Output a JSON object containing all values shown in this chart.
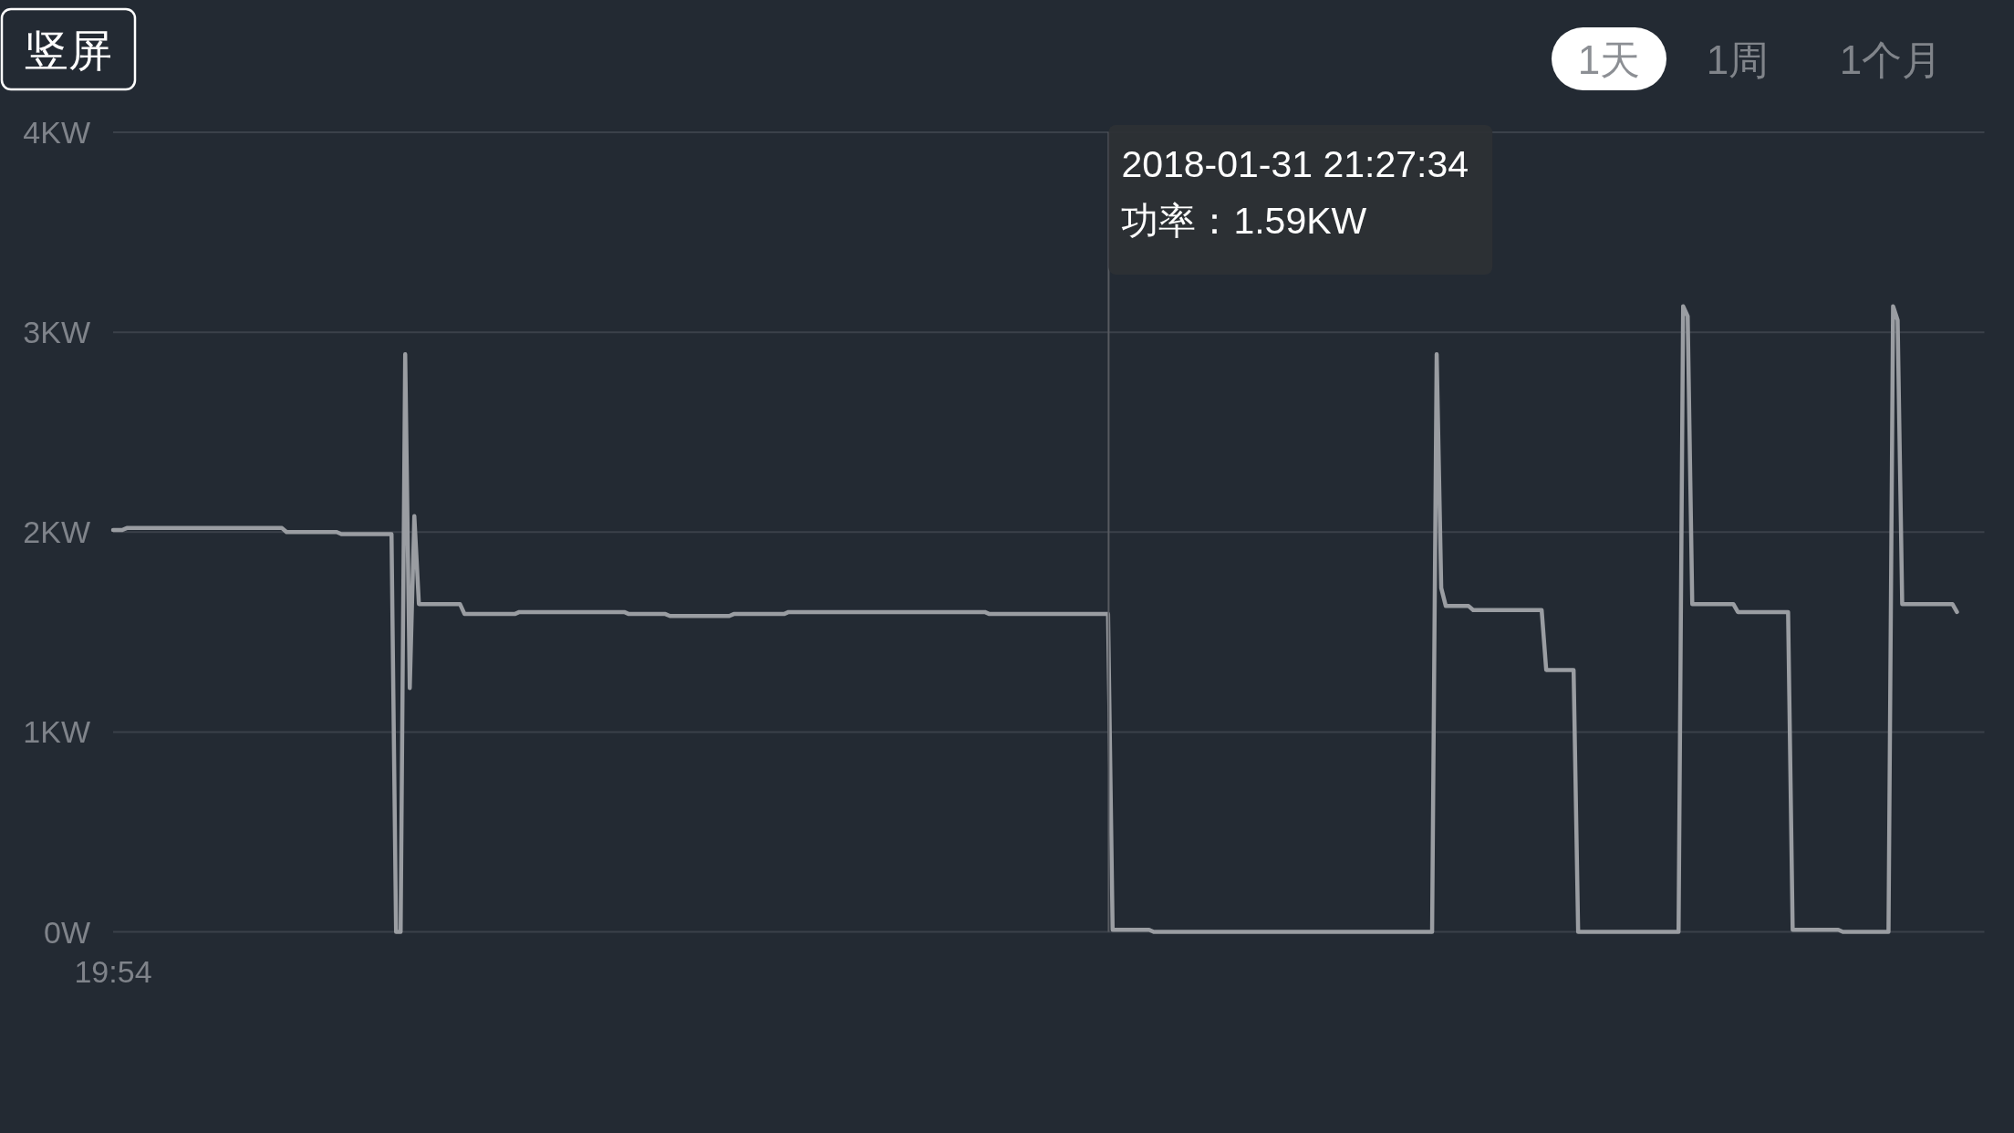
{
  "chart_data": {
    "type": "line",
    "categories": [
      "19:54",
      null,
      null,
      null,
      null,
      null,
      null,
      null,
      null,
      null,
      null,
      null,
      null,
      null,
      null,
      null,
      null,
      null,
      null,
      null,
      null,
      null,
      null,
      null,
      null,
      null,
      null,
      null,
      null,
      null,
      null,
      null,
      null,
      null,
      null,
      null,
      null,
      null,
      null,
      null,
      null,
      null,
      null,
      null,
      null,
      null,
      null,
      null,
      null,
      null,
      null,
      null,
      null,
      null,
      null,
      null,
      null,
      null,
      null,
      null,
      null,
      null,
      null,
      null,
      null,
      null,
      null,
      null,
      null,
      null,
      null,
      null,
      null,
      null,
      null,
      null,
      null,
      null,
      null,
      null,
      null,
      null,
      null,
      null,
      null,
      null,
      null,
      null,
      null,
      null,
      null,
      null,
      null,
      null,
      null,
      null,
      null,
      null,
      null,
      null,
      null,
      null,
      null,
      null,
      null,
      null,
      null,
      null,
      null,
      null,
      null,
      null,
      null,
      null,
      null,
      null,
      null,
      null,
      null,
      null,
      null,
      null,
      null,
      null,
      null,
      null,
      null,
      null,
      null,
      null,
      null,
      null,
      null,
      null,
      null,
      null,
      null,
      null,
      null,
      null,
      null,
      null,
      null,
      null,
      null,
      null,
      null,
      null,
      null,
      null,
      null,
      null,
      null,
      null,
      null,
      null,
      null,
      null,
      null,
      null,
      null,
      null,
      null,
      null,
      null,
      null,
      null,
      null,
      null,
      null,
      null,
      null,
      null,
      null,
      null,
      null,
      null,
      null,
      null,
      null,
      null,
      null,
      null,
      null,
      null,
      null,
      null,
      null,
      null,
      null,
      null,
      null,
      null,
      null,
      null,
      null,
      null,
      null,
      null,
      null,
      null,
      null,
      null,
      null,
      null,
      null,
      null,
      null,
      null,
      null,
      null,
      null,
      null,
      null,
      null,
      null,
      null,
      null,
      null,
      null,
      null,
      null,
      null,
      null,
      null,
      null,
      null,
      null,
      null,
      null,
      null,
      null,
      null,
      null,
      null,
      null,
      null,
      null,
      null,
      null,
      null,
      null,
      null,
      null,
      null,
      null,
      null,
      null,
      null,
      null,
      null,
      null,
      null,
      null,
      null,
      null,
      null,
      null,
      null,
      null,
      null,
      null,
      null,
      null,
      null,
      null,
      null,
      null,
      null,
      null,
      null,
      null,
      null,
      null,
      null,
      null,
      null,
      null,
      null,
      null,
      null,
      null,
      null,
      null,
      null,
      null,
      null,
      null,
      null,
      null,
      null,
      null,
      null,
      null,
      null,
      null,
      null,
      null,
      null,
      null,
      null,
      null,
      null,
      null,
      null,
      null,
      null,
      null,
      null,
      null,
      null,
      null,
      null,
      null,
      null,
      null,
      null,
      null,
      null,
      null,
      null,
      null,
      null,
      null,
      null,
      null,
      null,
      null,
      null,
      null,
      null,
      null,
      null,
      null,
      null,
      null,
      null,
      null,
      null,
      null,
      null,
      null,
      null,
      null,
      null,
      null,
      null,
      null,
      null,
      null,
      null,
      null,
      null,
      null,
      null,
      null,
      null,
      null,
      null,
      null,
      null,
      null,
      null,
      null,
      null,
      null,
      null,
      null,
      null,
      null,
      null,
      null,
      null,
      null,
      null,
      null,
      null,
      null,
      null,
      null,
      null,
      null,
      null,
      null,
      null,
      null,
      null,
      null,
      null,
      null,
      null,
      null,
      null,
      null,
      null,
      null,
      null,
      null,
      null,
      null,
      null,
      null,
      null,
      null,
      null,
      null,
      null,
      null,
      null,
      null,
      null
    ],
    "values": [
      2.01,
      2.01,
      2.01,
      2.02,
      2.02,
      2.02,
      2.02,
      2.02,
      2.02,
      2.02,
      2.02,
      2.02,
      2.02,
      2.02,
      2.02,
      2.02,
      2.02,
      2.02,
      2.02,
      2.02,
      2.02,
      2.02,
      2.02,
      2.02,
      2.02,
      2.02,
      2.02,
      2.02,
      2.02,
      2.02,
      2.02,
      2.02,
      2.02,
      2.02,
      2.02,
      2.02,
      2.02,
      2.02,
      2.0,
      2.0,
      2.0,
      2.0,
      2.0,
      2.0,
      2.0,
      2.0,
      2.0,
      2.0,
      2.0,
      2.0,
      1.99,
      1.99,
      1.99,
      1.99,
      1.99,
      1.99,
      1.99,
      1.99,
      1.99,
      1.99,
      1.99,
      1.99,
      0,
      0,
      2.89,
      1.22,
      2.08,
      1.64,
      1.64,
      1.64,
      1.64,
      1.64,
      1.64,
      1.64,
      1.64,
      1.64,
      1.64,
      1.59,
      1.59,
      1.59,
      1.59,
      1.59,
      1.59,
      1.59,
      1.59,
      1.59,
      1.59,
      1.59,
      1.59,
      1.6,
      1.6,
      1.6,
      1.6,
      1.6,
      1.6,
      1.6,
      1.6,
      1.6,
      1.6,
      1.6,
      1.6,
      1.6,
      1.6,
      1.6,
      1.6,
      1.6,
      1.6,
      1.6,
      1.6,
      1.6,
      1.6,
      1.6,
      1.6,
      1.59,
      1.59,
      1.59,
      1.59,
      1.59,
      1.59,
      1.59,
      1.59,
      1.59,
      1.58,
      1.58,
      1.58,
      1.58,
      1.58,
      1.58,
      1.58,
      1.58,
      1.58,
      1.58,
      1.58,
      1.58,
      1.58,
      1.58,
      1.59,
      1.59,
      1.59,
      1.59,
      1.59,
      1.59,
      1.59,
      1.59,
      1.59,
      1.59,
      1.59,
      1.59,
      1.6,
      1.6,
      1.6,
      1.6,
      1.6,
      1.6,
      1.6,
      1.6,
      1.6,
      1.6,
      1.6,
      1.6,
      1.6,
      1.6,
      1.6,
      1.6,
      1.6,
      1.6,
      1.6,
      1.6,
      1.6,
      1.6,
      1.6,
      1.6,
      1.6,
      1.6,
      1.6,
      1.6,
      1.6,
      1.6,
      1.6,
      1.6,
      1.6,
      1.6,
      1.6,
      1.6,
      1.6,
      1.6,
      1.6,
      1.6,
      1.6,
      1.6,
      1.6,
      1.6,
      1.59,
      1.59,
      1.59,
      1.59,
      1.59,
      1.59,
      1.59,
      1.59,
      1.59,
      1.59,
      1.59,
      1.59,
      1.59,
      1.59,
      1.59,
      1.59,
      1.59,
      1.59,
      1.59,
      1.59,
      1.59,
      1.59,
      1.59,
      1.59,
      1.59,
      1.59,
      1.59,
      0.01,
      0.01,
      0.01,
      0.01,
      0.01,
      0.01,
      0.01,
      0.01,
      0.01,
      0,
      0,
      0,
      0,
      0,
      0,
      0,
      0,
      0,
      0,
      0,
      0,
      0,
      0,
      0,
      0,
      0,
      0,
      0,
      0,
      0,
      0,
      0,
      0,
      0,
      0,
      0,
      0,
      0,
      0,
      0,
      0,
      0,
      0,
      0,
      0,
      0,
      0,
      0,
      0,
      0,
      0,
      0,
      0,
      0,
      0,
      0,
      0,
      0,
      0,
      0,
      0,
      0,
      0,
      0,
      0,
      0,
      0,
      0,
      0,
      0,
      0,
      2.89,
      1.72,
      1.63,
      1.63,
      1.63,
      1.63,
      1.63,
      1.63,
      1.61,
      1.61,
      1.61,
      1.61,
      1.61,
      1.61,
      1.61,
      1.61,
      1.61,
      1.61,
      1.61,
      1.61,
      1.61,
      1.61,
      1.61,
      1.61,
      1.31,
      1.31,
      1.31,
      1.31,
      1.31,
      1.31,
      1.31,
      0,
      0,
      0,
      0,
      0,
      0,
      0,
      0,
      0,
      0,
      0,
      0,
      0,
      0,
      0,
      0,
      0,
      0,
      0,
      0,
      0,
      0,
      0,
      3.13,
      3.08,
      1.64,
      1.64,
      1.64,
      1.64,
      1.64,
      1.64,
      1.64,
      1.64,
      1.64,
      1.64,
      1.6,
      1.6,
      1.6,
      1.6,
      1.6,
      1.6,
      1.6,
      1.6,
      1.6,
      1.6,
      1.6,
      1.6,
      0.01,
      0.01,
      0.01,
      0.01,
      0.01,
      0.01,
      0.01,
      0.01,
      0.01,
      0.01,
      0.01,
      0,
      0,
      0,
      0,
      0,
      0,
      0,
      0,
      0,
      0,
      0,
      3.13,
      3.06,
      1.64,
      1.64,
      1.64,
      1.64,
      1.64,
      1.64,
      1.64,
      1.64,
      1.64,
      1.64,
      1.64,
      1.64,
      1.6,
      null,
      null,
      null,
      null,
      null,
      null
    ],
    "color": "#9a9da2",
    "ylim": [
      0,
      4
    ],
    "yticks": [
      {
        "value": 0,
        "label": "0W"
      },
      {
        "value": 1,
        "label": "1KW"
      },
      {
        "value": 2,
        "label": "2KW"
      },
      {
        "value": 3,
        "label": "3KW"
      },
      {
        "value": 4,
        "label": "4KW"
      }
    ],
    "grid": "y",
    "annotations": [
      "竖屏",
      "1天",
      "1周",
      "1个月",
      "2018-01-31 21:27:34",
      "功率：1.59KW"
    ]
  }
}
